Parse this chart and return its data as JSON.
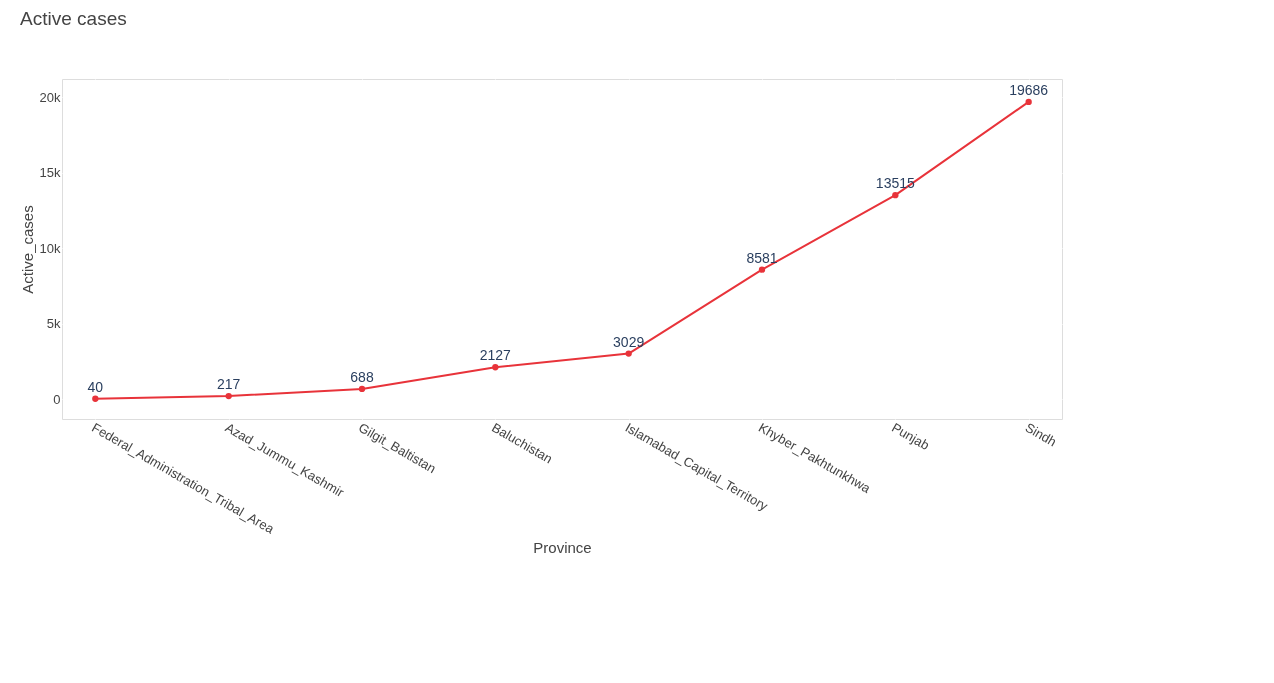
{
  "chart_data": {
    "type": "line",
    "title": "Active cases",
    "xlabel": "Province",
    "ylabel": "Active_cases",
    "categories": [
      "Federal_Administration_Tribal_Area",
      "Azad_Jummu_Kashmir",
      "Gilgit_Baltistan",
      "Baluchistan",
      "Islamabad_Capital_Territory",
      "Khyber_Pakhtunkhwa",
      "Punjab",
      "Sindh"
    ],
    "series": [
      {
        "color": "#e8333a",
        "values": [
          40,
          217,
          688,
          2127,
          3029,
          8581,
          13515,
          19686
        ]
      }
    ],
    "ylim": [
      -1300,
      21200
    ],
    "yticks": [
      0,
      {
        "value": 5000,
        "label": "5k"
      },
      {
        "value": 10000,
        "label": "10k"
      },
      {
        "value": 15000,
        "label": "15k"
      },
      {
        "value": 20000,
        "label": "20k"
      }
    ],
    "grid": true,
    "marker": "circle",
    "line_style": "solid",
    "data_labels": true
  }
}
